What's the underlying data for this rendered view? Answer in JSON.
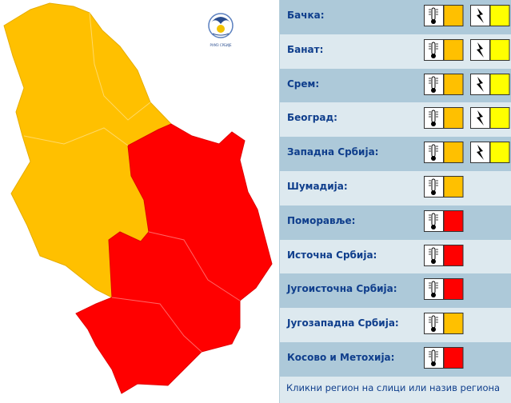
{
  "logo_text": "РХМЗ СРБИЈЕ",
  "regions": [
    {
      "name": "Бачка:",
      "heat": "#ffc000",
      "storm": "#ffff00"
    },
    {
      "name": "Банат:",
      "heat": "#ffc000",
      "storm": "#ffff00"
    },
    {
      "name": "Срем:",
      "heat": "#ffc000",
      "storm": "#ffff00"
    },
    {
      "name": "Београд:",
      "heat": "#ffc000",
      "storm": "#ffff00"
    },
    {
      "name": "Западна Србија:",
      "heat": "#ffc000",
      "storm": "#ffff00"
    },
    {
      "name": "Шумадија:",
      "heat": "#ffc000"
    },
    {
      "name": "Поморавље:",
      "heat": "#ff0000"
    },
    {
      "name": "Источна Србија:",
      "heat": "#ff0000"
    },
    {
      "name": "Југоисточна Србија:",
      "heat": "#ff0000"
    },
    {
      "name": "Југозападна Србија:",
      "heat": "#ffc000"
    },
    {
      "name": "Косово и Метохија:",
      "heat": "#ff0000"
    }
  ],
  "footer": "Кликни регион на слици или назив региона"
}
